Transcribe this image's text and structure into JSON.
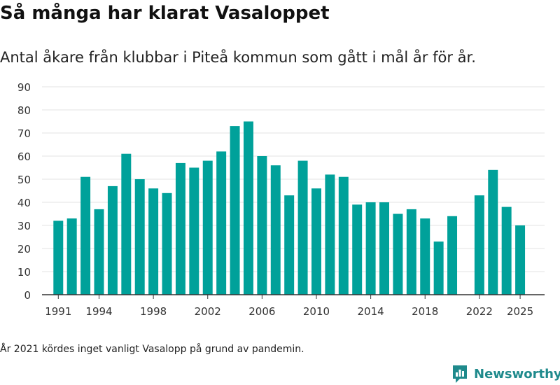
{
  "header": {
    "title": "Så många har klarat Vasaloppet",
    "subtitle": "Antal åkare från klubbar i Piteå kommun som gått i mål år för år."
  },
  "footnote": "År 2021 kördes inget vanligt Vasalopp på grund av pandemin.",
  "brand": {
    "name": "Newsworthy",
    "logo_icon": "bar-chart-chat-icon",
    "color": "#1f8a8c"
  },
  "colors": {
    "bar": "#00a19a",
    "grid": "#e3e3e3",
    "axis": "#333333",
    "text": "#333333"
  },
  "chart_data": {
    "type": "bar",
    "title": "Så många har klarat Vasaloppet",
    "subtitle": "Antal åkare från klubbar i Piteå kommun som gått i mål år för år.",
    "xlabel": "",
    "ylabel": "",
    "ylim": [
      0,
      90
    ],
    "yticks": [
      0,
      10,
      20,
      30,
      40,
      50,
      60,
      70,
      80,
      90
    ],
    "xticks": [
      1991,
      1994,
      1998,
      2002,
      2006,
      2010,
      2014,
      2018,
      2022,
      2025
    ],
    "grid": true,
    "legend": "none",
    "categories": [
      1991,
      1992,
      1993,
      1994,
      1995,
      1996,
      1997,
      1998,
      1999,
      2000,
      2001,
      2002,
      2003,
      2004,
      2005,
      2006,
      2007,
      2008,
      2009,
      2010,
      2011,
      2012,
      2013,
      2014,
      2015,
      2016,
      2017,
      2018,
      2019,
      2020,
      2022,
      2023,
      2024,
      2025
    ],
    "values": [
      32,
      33,
      51,
      37,
      47,
      61,
      50,
      46,
      44,
      57,
      55,
      58,
      62,
      73,
      75,
      60,
      56,
      43,
      58,
      46,
      52,
      51,
      39,
      40,
      40,
      35,
      37,
      33,
      23,
      34,
      43,
      54,
      38,
      30
    ]
  }
}
